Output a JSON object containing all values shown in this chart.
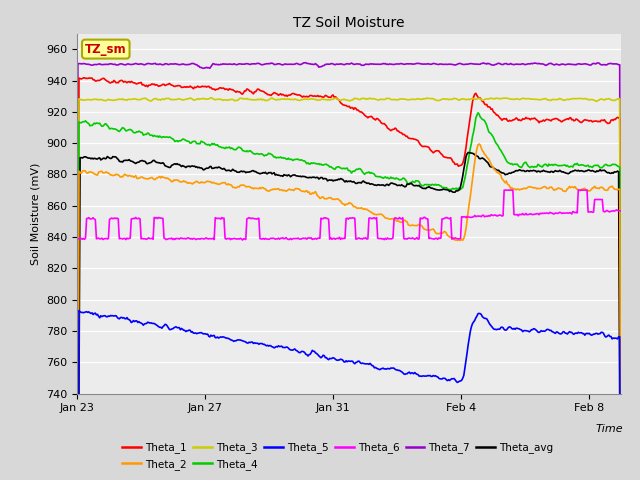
{
  "title": "TZ Soil Moisture",
  "xlabel": "Time",
  "ylabel": "Soil Moisture (mV)",
  "ylim": [
    740,
    970
  ],
  "yticks": [
    740,
    760,
    780,
    800,
    820,
    840,
    860,
    880,
    900,
    920,
    940,
    960
  ],
  "xtick_labels": [
    "Jan 23",
    "Jan 27",
    "Jan 31",
    "Feb 4",
    "Feb 8"
  ],
  "xtick_positions": [
    0,
    4,
    8,
    12,
    16
  ],
  "xlim_days": [
    0,
    17
  ],
  "colors": {
    "Theta_1": "#ff0000",
    "Theta_2": "#ff9900",
    "Theta_3": "#cccc00",
    "Theta_4": "#00cc00",
    "Theta_5": "#0000ff",
    "Theta_6": "#ff00ff",
    "Theta_7": "#9900cc",
    "Theta_avg": "#000000"
  },
  "bg_color": "#d8d8d8",
  "plot_bg_color": "#ececec",
  "label_box_color": "#ffff99",
  "label_box_text": "TZ_sm",
  "label_box_text_color": "#cc0000",
  "grid_color": "#ffffff",
  "lw": 1.2
}
